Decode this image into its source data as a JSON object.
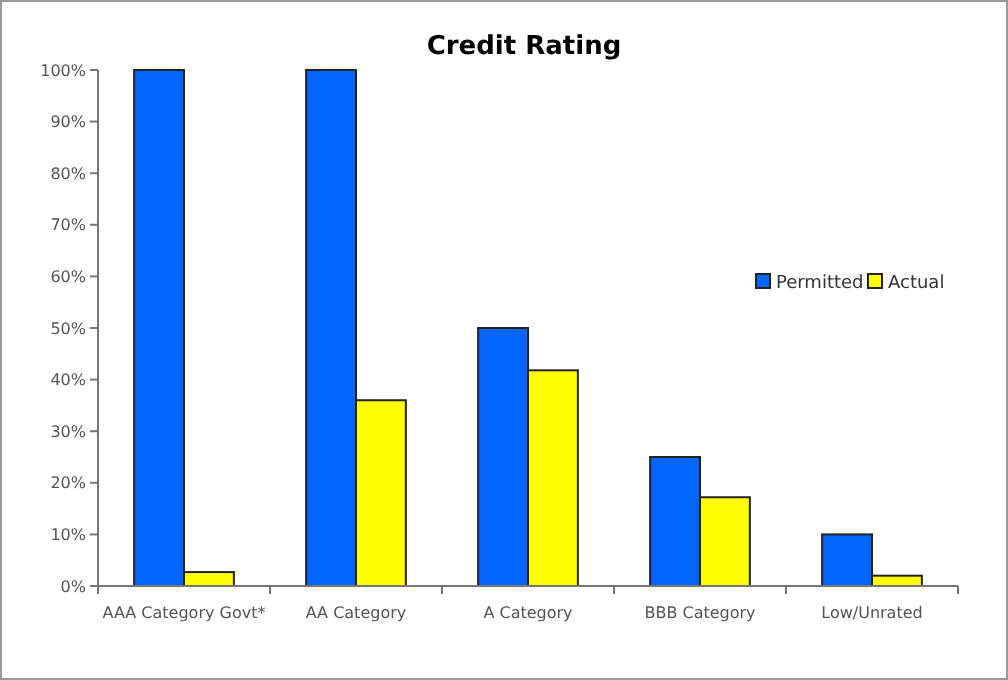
{
  "chart_data": {
    "type": "bar",
    "title": "Credit Rating",
    "categories": [
      "AAA Category Govt*",
      "AA Category",
      "A Category",
      "BBB Category",
      "Low/Unrated"
    ],
    "series": [
      {
        "name": "Permitted",
        "color": "#0066ff",
        "values": [
          100,
          100,
          50,
          25,
          10
        ]
      },
      {
        "name": "Actual",
        "color": "#ffff00",
        "values": [
          2.7,
          36,
          41.8,
          17.2,
          2
        ]
      }
    ],
    "ylim": [
      0,
      100
    ],
    "yticks": [
      {
        "value": 0,
        "label": "0%"
      },
      {
        "value": 10,
        "label": "10%"
      },
      {
        "value": 20,
        "label": "20%"
      },
      {
        "value": 30,
        "label": "30%"
      },
      {
        "value": 40,
        "label": "40%"
      },
      {
        "value": 50,
        "label": "50%"
      },
      {
        "value": 60,
        "label": "60%"
      },
      {
        "value": 70,
        "label": "70%"
      },
      {
        "value": 80,
        "label": "80%"
      },
      {
        "value": 90,
        "label": "90%"
      },
      {
        "value": 100,
        "label": "100%"
      }
    ],
    "grid": false,
    "legend": "right"
  }
}
